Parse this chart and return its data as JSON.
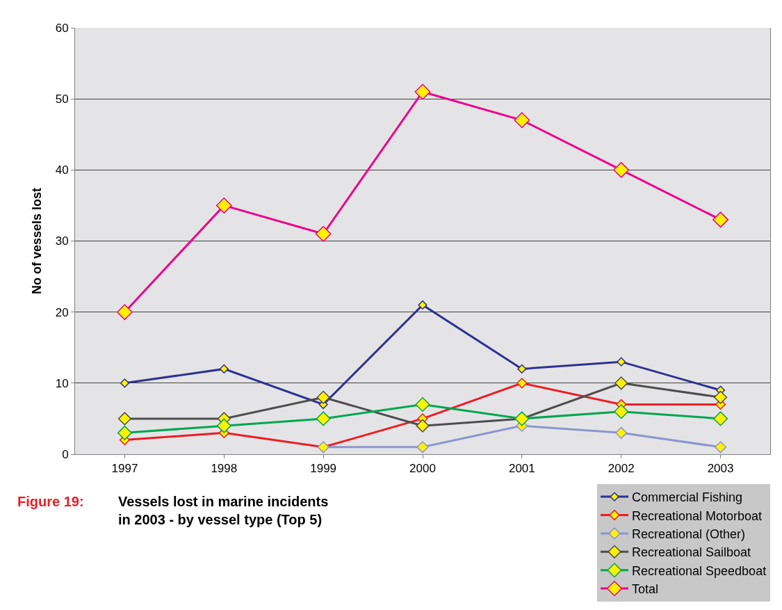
{
  "chart_data": {
    "type": "line",
    "title": "Vessels lost in marine incidents in 2003 - by vessel type (Top 5)",
    "ylabel": "No of vessels lost",
    "annotations": [
      "Figure 19:"
    ],
    "categories": [
      "1997",
      "1998",
      "1999",
      "2000",
      "2001",
      "2002",
      "2003"
    ],
    "series": [
      {
        "name": "Commercial Fishing",
        "color": "#2e3192",
        "values": [
          10,
          12,
          7,
          21,
          12,
          13,
          9
        ]
      },
      {
        "name": "Recreational Motorboat",
        "color": "#ed1c24",
        "values": [
          2,
          3,
          1,
          5,
          10,
          7,
          7
        ]
      },
      {
        "name": "Recreational (Other)",
        "color": "#8c95d0",
        "values": [
          null,
          null,
          1,
          1,
          4,
          3,
          1
        ]
      },
      {
        "name": "Recreational Sailboat",
        "color": "#4d4d4d",
        "values": [
          5,
          5,
          8,
          4,
          5,
          10,
          8
        ]
      },
      {
        "name": "Recreational Speedboat",
        "color": "#00a651",
        "values": [
          3,
          4,
          5,
          7,
          5,
          6,
          5
        ]
      },
      {
        "name": "Total",
        "color": "#ec008c",
        "values": [
          20,
          35,
          31,
          51,
          47,
          40,
          33
        ]
      }
    ],
    "ylim": [
      0,
      60
    ],
    "yticks": [
      0,
      10,
      20,
      30,
      40,
      50,
      60
    ],
    "grid": "y",
    "legend": "bottom right",
    "marker": "diamond",
    "line_style": "solid"
  }
}
